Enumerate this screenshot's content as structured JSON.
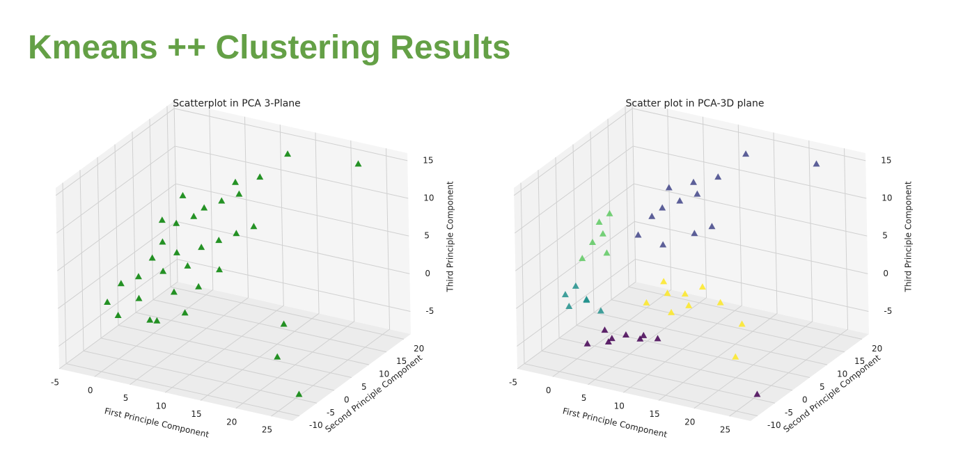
{
  "title": "Kmeans ++ Clustering Results",
  "chart_data": [
    {
      "type": "scatter3d",
      "title": "Scatterplot in PCA 3-Plane",
      "xlabel": "First Principle Component",
      "ylabel": "Second Principle Component",
      "zlabel": "Third Principle Component",
      "xlim": [
        -5,
        28
      ],
      "ylim": [
        -12,
        22
      ],
      "zlim": [
        -8,
        16
      ],
      "xticks": [
        -5,
        0,
        5,
        10,
        15,
        20,
        25
      ],
      "yticks": [
        -10,
        -5,
        0,
        5,
        10,
        15,
        20
      ],
      "zticks": [
        -5,
        0,
        5,
        10,
        15
      ],
      "grid": true,
      "marker": "triangle",
      "series": [
        {
          "color": "#008000",
          "x": [
            -4,
            -3,
            -2,
            -1,
            0,
            0,
            1,
            1,
            2,
            2,
            3,
            3,
            4,
            4,
            5,
            5,
            6,
            6,
            7,
            7,
            8,
            8,
            9,
            9,
            10,
            11,
            12,
            2,
            0,
            15,
            18,
            27,
            22,
            14
          ],
          "y": [
            0,
            2,
            -1,
            3,
            1,
            5,
            2,
            6,
            4,
            8,
            0,
            6,
            3,
            9,
            5,
            10,
            2,
            7,
            11,
            4,
            8,
            13,
            6,
            12,
            9,
            14,
            10,
            10,
            8,
            12,
            4,
            -8,
            20,
            16
          ],
          "z": [
            -3,
            -1,
            -4,
            0,
            -2,
            2,
            -5,
            4,
            1,
            6,
            -4,
            3,
            -1,
            7,
            2,
            8,
            -3,
            4,
            9,
            0,
            5,
            11,
            2,
            10,
            6,
            12,
            7,
            9,
            6,
            -6,
            -7,
            -6,
            14,
            15
          ]
        }
      ]
    },
    {
      "type": "scatter3d",
      "title": "Scatter plot in PCA-3D plane",
      "xlabel": "First Principle Component",
      "ylabel": "Second Principle Component",
      "zlabel": "Third Principle Component",
      "xlim": [
        -5,
        28
      ],
      "ylim": [
        -12,
        22
      ],
      "zlim": [
        -8,
        16
      ],
      "xticks": [
        -5,
        0,
        5,
        10,
        15,
        20,
        25
      ],
      "yticks": [
        -10,
        -5,
        0,
        5,
        10,
        15,
        20
      ],
      "zticks": [
        -5,
        0,
        5,
        10,
        15
      ],
      "grid": true,
      "marker": "triangle",
      "series": [
        {
          "color": "#440154",
          "x": [
            0,
            2,
            4,
            6,
            3,
            1,
            5,
            8,
            27
          ],
          "y": [
            -2,
            0,
            1,
            2,
            -1,
            1,
            3,
            2,
            -8
          ],
          "z": [
            -7,
            -7,
            -6,
            -6,
            -6,
            -6,
            -7,
            -6,
            -6
          ]
        },
        {
          "color": "#21918c",
          "x": [
            -4,
            -3,
            -2,
            -1,
            0,
            -3
          ],
          "y": [
            0,
            1,
            2,
            0,
            2,
            -1
          ],
          "z": [
            -2,
            -1,
            -3,
            -2,
            -4,
            -3
          ]
        },
        {
          "color": "#5ec962",
          "x": [
            -3,
            -2,
            -1,
            -2,
            0,
            -1
          ],
          "y": [
            3,
            4,
            5,
            6,
            4,
            7
          ],
          "z": [
            2,
            4,
            5,
            6,
            3,
            7
          ]
        },
        {
          "color": "#414487",
          "x": [
            3,
            4,
            5,
            6,
            7,
            8,
            9,
            10,
            11,
            5,
            22,
            14,
            12
          ],
          "y": [
            7,
            9,
            10,
            8,
            11,
            13,
            12,
            9,
            14,
            12,
            20,
            16,
            10
          ],
          "z": [
            5,
            7,
            8,
            4,
            9,
            11,
            10,
            6,
            12,
            10,
            14,
            15,
            7
          ]
        },
        {
          "color": "#fde725",
          "x": [
            6,
            8,
            10,
            12,
            9,
            7,
            14,
            15,
            18,
            11
          ],
          "y": [
            3,
            5,
            6,
            7,
            4,
            6,
            8,
            12,
            4,
            5
          ],
          "z": [
            -2,
            -1,
            -1,
            0,
            -3,
            0,
            -2,
            -6,
            -7,
            -2
          ]
        }
      ]
    }
  ]
}
